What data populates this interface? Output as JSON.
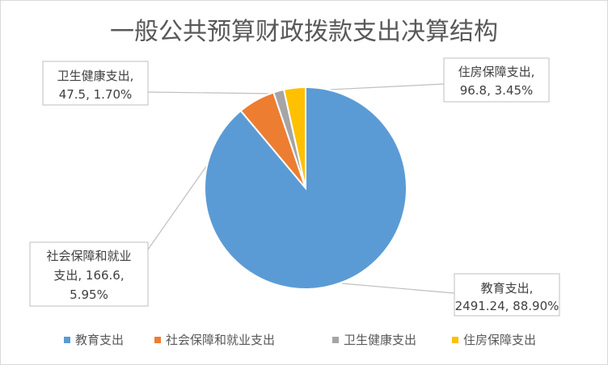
{
  "chart_data": {
    "type": "pie",
    "title": "一般公共预算财政拨款支出决算结构",
    "slices": [
      {
        "name": "教育支出",
        "value": 2491.24,
        "percent": 88.9,
        "color": "#5b9bd5",
        "label_lines": [
          "教育支出,",
          "2491.24, 88.90%"
        ]
      },
      {
        "name": "社会保障和就业支出",
        "value": 166.6,
        "percent": 5.95,
        "color": "#ed7d31",
        "label_lines": [
          "社会保障和就业",
          "支出, 166.6,",
          "5.95%"
        ]
      },
      {
        "name": "卫生健康支出",
        "value": 47.5,
        "percent": 1.7,
        "color": "#a5a5a5",
        "label_lines": [
          "卫生健康支出,",
          "47.5, 1.70%"
        ]
      },
      {
        "name": "住房保障支出",
        "value": 96.8,
        "percent": 3.45,
        "color": "#ffc000",
        "label_lines": [
          "住房保障支出,",
          "96.8, 3.45%"
        ]
      }
    ],
    "legend": {
      "position": "bottom"
    }
  }
}
